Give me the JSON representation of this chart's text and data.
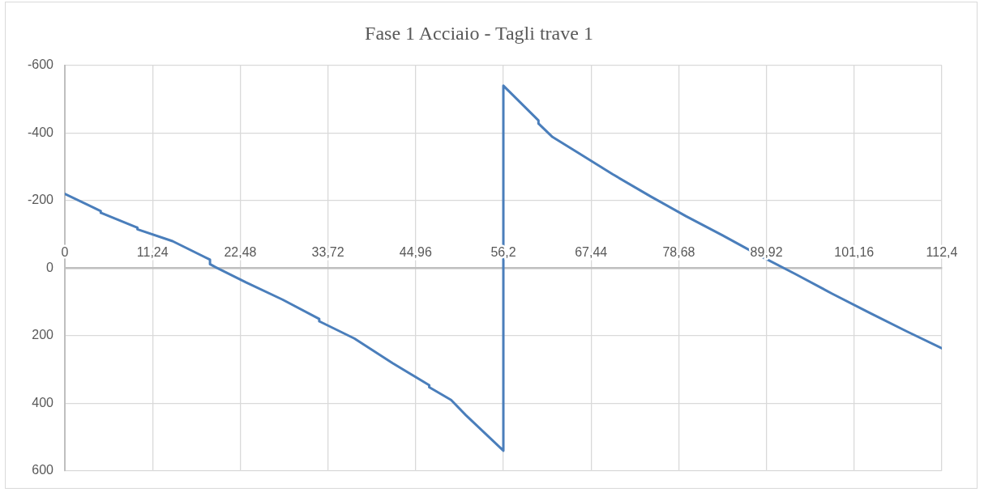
{
  "chart_data": {
    "type": "line",
    "title": "Fase 1 Acciaio - Tagli trave 1",
    "x": [
      0,
      4.6,
      4.6,
      9.3,
      9.3,
      13.8,
      18.6,
      18.6,
      19.3,
      23.2,
      27.9,
      32.6,
      32.6,
      37.1,
      42,
      46.7,
      46.7,
      49.5,
      51.4,
      56.2,
      56.2,
      60.7,
      60.7,
      62.5,
      65.4,
      70.2,
      75.1,
      79.6,
      84.3,
      88.9,
      93.6,
      98.3,
      103.2,
      107.9,
      112.4
    ],
    "series": [
      {
        "color": "#4a7ebb",
        "values": [
          -220,
          -169,
          -164,
          -120,
          -115,
          -80,
          -25,
          -12,
          -3,
          42,
          93,
          150,
          157,
          208,
          281,
          346,
          352,
          390,
          435,
          540,
          -540,
          -437,
          -428,
          -388,
          -347,
          -278,
          -212,
          -154,
          -97,
          -39,
          17,
          75,
          133,
          187,
          237
        ]
      }
    ],
    "xlim": [
      0,
      112.4
    ],
    "xticks": [
      0,
      {
        "value": 11.24,
        "label": "11,24"
      },
      {
        "value": 22.48,
        "label": "22,48"
      },
      {
        "value": 33.72,
        "label": "33,72"
      },
      {
        "value": 44.96,
        "label": "44,96"
      },
      {
        "value": 56.2,
        "label": "56,2"
      },
      {
        "value": 67.44,
        "label": "67,44"
      },
      {
        "value": 78.68,
        "label": "78,68"
      },
      {
        "value": 89.92,
        "label": "89,92"
      },
      {
        "value": 101.16,
        "label": "101,16"
      },
      {
        "value": 112.4,
        "label": "112,4"
      }
    ],
    "ylim": [
      600,
      -600
    ],
    "yticks": [
      -600,
      -400,
      -200,
      0,
      200,
      400,
      600
    ],
    "grid": true,
    "marker": "none",
    "line_style": "solid",
    "legend": false
  }
}
